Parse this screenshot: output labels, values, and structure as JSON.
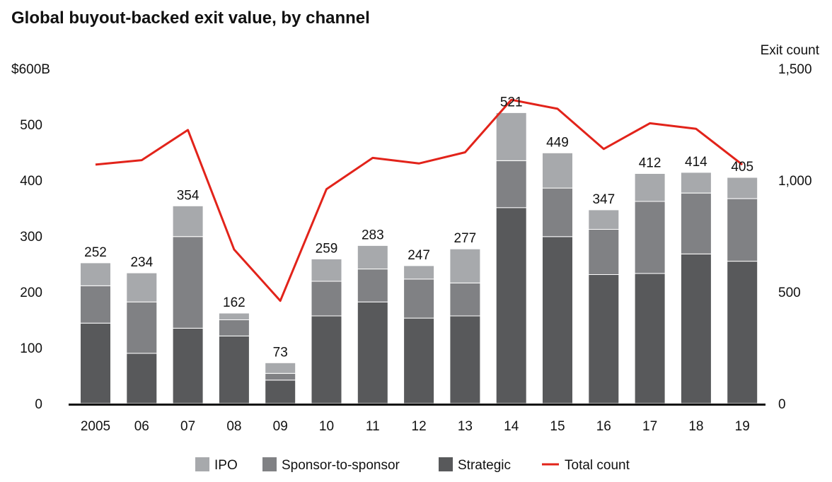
{
  "chart_data": {
    "type": "bar",
    "stacked": true,
    "title": "Global buyout-backed exit value, by channel",
    "categories": [
      "2005",
      "06",
      "07",
      "08",
      "09",
      "10",
      "11",
      "12",
      "13",
      "14",
      "15",
      "16",
      "17",
      "18",
      "19"
    ],
    "left_axis": {
      "ylim": [
        0,
        600
      ],
      "ticks": [
        0,
        100,
        200,
        300,
        400,
        500,
        600
      ],
      "tick_labels": [
        "0",
        "100",
        "200",
        "300",
        "400",
        "500",
        "$600B"
      ]
    },
    "right_axis": {
      "label": "Exit count",
      "ylim": [
        0,
        1500
      ],
      "ticks": [
        0,
        500,
        1000,
        1500
      ],
      "tick_labels": [
        "0",
        "500",
        "1,000",
        "1,500"
      ]
    },
    "series": [
      {
        "name": "Strategic",
        "color": "#58595b",
        "values": [
          144,
          90,
          135,
          121,
          42,
          157,
          182,
          153,
          157,
          351,
          299,
          231,
          233,
          268,
          255
        ]
      },
      {
        "name": "Sponsor-to-sponsor",
        "color": "#808184",
        "values": [
          67,
          92,
          164,
          29,
          12,
          62,
          59,
          70,
          59,
          84,
          87,
          81,
          129,
          109,
          112
        ]
      },
      {
        "name": "IPO",
        "color": "#a7a9ac",
        "values": [
          41,
          52,
          55,
          12,
          19,
          40,
          42,
          24,
          61,
          86,
          63,
          35,
          50,
          37,
          38
        ]
      }
    ],
    "totals": [
      252,
      234,
      354,
      162,
      73,
      259,
      283,
      247,
      277,
      521,
      449,
      347,
      412,
      414,
      405
    ],
    "line": {
      "name": "Total count",
      "color": "#e2231a",
      "axis": "right",
      "values": [
        1070,
        1090,
        1225,
        690,
        460,
        960,
        1100,
        1075,
        1125,
        1360,
        1320,
        1140,
        1255,
        1230,
        1070
      ]
    },
    "legend": {
      "position": "bottom",
      "entries": [
        {
          "label": "IPO",
          "color": "#a7a9ac",
          "kind": "box"
        },
        {
          "label": "Sponsor-to-sponsor",
          "color": "#808184",
          "kind": "box"
        },
        {
          "label": "Strategic",
          "color": "#58595b",
          "kind": "box"
        },
        {
          "label": "Total count",
          "color": "#e2231a",
          "kind": "line"
        }
      ]
    },
    "grid": false
  }
}
